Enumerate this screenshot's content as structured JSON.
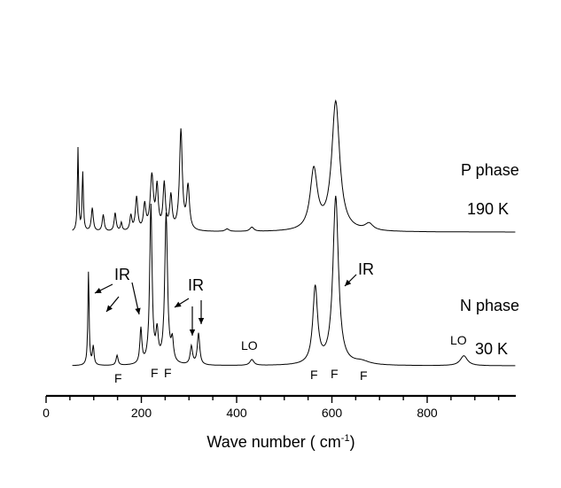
{
  "chart_data": {
    "type": "line",
    "title": "",
    "xlabel": "Wave number ( cm",
    "xlabel_sup": "-1",
    "xlabel_tail": ")",
    "ylabel": "",
    "xlim": [
      0,
      985
    ],
    "xticks": [
      0,
      200,
      400,
      600,
      800
    ],
    "grid": false,
    "baseline": 0.02,
    "series": [
      {
        "name": "",
        "offset": 1.0,
        "peaks": [
          [
            67,
            1.0,
            1.5
          ],
          [
            77,
            0.7,
            1.6
          ],
          [
            97,
            0.28,
            2.5
          ],
          [
            120,
            0.2,
            2.5
          ],
          [
            145,
            0.22,
            2.5
          ],
          [
            158,
            0.1,
            2.0
          ],
          [
            178,
            0.18,
            2.5
          ],
          [
            190,
            0.4,
            3
          ],
          [
            207,
            0.3,
            3
          ],
          [
            222,
            0.65,
            4
          ],
          [
            233,
            0.5,
            3
          ],
          [
            248,
            0.55,
            3
          ],
          [
            262,
            0.4,
            3
          ],
          [
            283,
            1.2,
            3.5
          ],
          [
            298,
            0.52,
            3.5
          ],
          [
            380,
            0.03,
            5
          ],
          [
            432,
            0.05,
            5
          ],
          [
            562,
            0.72,
            9
          ],
          [
            608,
            1.55,
            10
          ],
          [
            678,
            0.08,
            10
          ]
        ]
      },
      {
        "name": "",
        "offset": 0.0,
        "peaks": [
          [
            89,
            1.12,
            1.6
          ],
          [
            99,
            0.22,
            2
          ],
          [
            149,
            0.12,
            2.5
          ],
          [
            199,
            0.42,
            2.5
          ],
          [
            220,
            1.9,
            3
          ],
          [
            233,
            0.35,
            3
          ],
          [
            252,
            1.8,
            3.5
          ],
          [
            265,
            0.25,
            3
          ],
          [
            305,
            0.22,
            3
          ],
          [
            320,
            0.38,
            3
          ],
          [
            432,
            0.07,
            5
          ],
          [
            565,
            0.92,
            6
          ],
          [
            608,
            2.02,
            7
          ],
          [
            662,
            0.04,
            20
          ],
          [
            877,
            0.12,
            9
          ]
        ]
      }
    ],
    "text_labels": {
      "upper_phase": "P phase",
      "upper_temp": "190 K",
      "lower_phase": "N phase",
      "lower_temp": "30 K",
      "ir_1": "IR",
      "ir_2": "IR",
      "ir_3": "IR",
      "lo_1": "LO",
      "lo_2": "LO",
      "f_1": "F",
      "f_2": "F",
      "f_3": "F",
      "f_4": "F",
      "f_5": "F",
      "f_6": "F"
    }
  }
}
